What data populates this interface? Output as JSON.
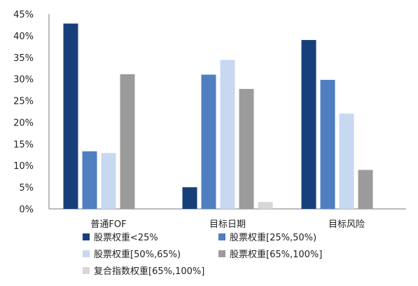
{
  "chart_data": {
    "type": "bar",
    "categories": [
      "普通FOF",
      "目标日期",
      "目标风险"
    ],
    "series": [
      {
        "name": "股票权重<25%",
        "color": "#17407a",
        "values": [
          42.8,
          5.0,
          39.0
        ]
      },
      {
        "name": "股票权重[25%,50%)",
        "color": "#4f7fc0",
        "values": [
          13.3,
          31.0,
          29.8
        ]
      },
      {
        "name": "股票权重[50%,65%)",
        "color": "#c7d8f1",
        "values": [
          12.9,
          34.4,
          22.0
        ]
      },
      {
        "name": "股票权重[65%,100%]",
        "color": "#9b9b9b",
        "values": [
          31.1,
          27.7,
          9.0
        ]
      },
      {
        "name": "复合指数权重[65%,100%]",
        "color": "#d7d7d7",
        "values": [
          0,
          1.6,
          0
        ]
      }
    ],
    "y_ticks": [
      "0%",
      "5%",
      "10%",
      "15%",
      "20%",
      "25%",
      "30%",
      "35%",
      "40%",
      "45%"
    ],
    "ylim": [
      0,
      45
    ],
    "title": "",
    "xlabel": "",
    "ylabel": "",
    "grid": false,
    "legend_position": "bottom"
  }
}
